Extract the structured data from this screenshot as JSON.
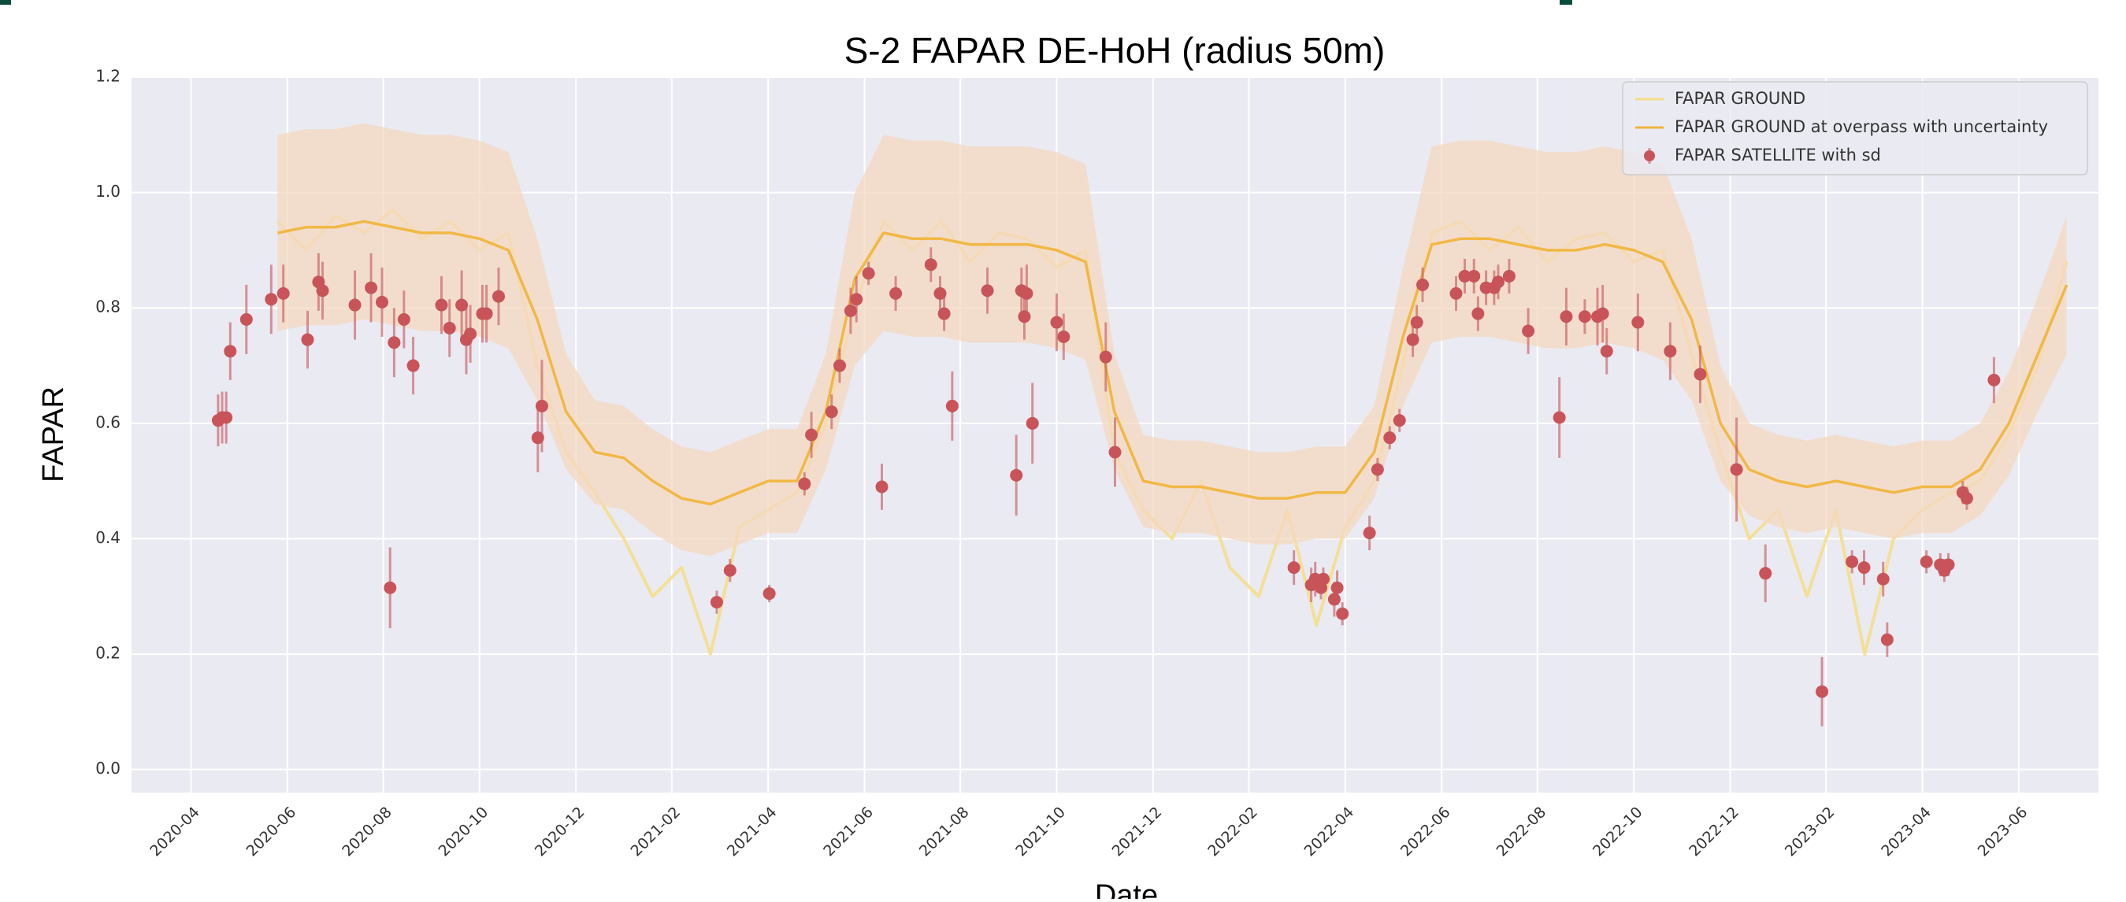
{
  "chart_data": {
    "type": "line",
    "title": "S-2 FAPAR DE-HoH (radius 50m)",
    "x_label": "Date",
    "y_label": "FAPAR",
    "xlim": [
      2020.147,
      2023.555
    ],
    "ylim": [
      -0.04,
      1.2
    ],
    "xticks": [
      {
        "value": 2020.25,
        "label": "2020-04"
      },
      {
        "value": 2020.417,
        "label": "2020-06"
      },
      {
        "value": 2020.583,
        "label": "2020-08"
      },
      {
        "value": 2020.75,
        "label": "2020-10"
      },
      {
        "value": 2020.917,
        "label": "2020-12"
      },
      {
        "value": 2021.083,
        "label": "2021-02"
      },
      {
        "value": 2021.25,
        "label": "2021-04"
      },
      {
        "value": 2021.417,
        "label": "2021-06"
      },
      {
        "value": 2021.583,
        "label": "2021-08"
      },
      {
        "value": 2021.75,
        "label": "2021-10"
      },
      {
        "value": 2021.917,
        "label": "2021-12"
      },
      {
        "value": 2022.083,
        "label": "2022-02"
      },
      {
        "value": 2022.25,
        "label": "2022-04"
      },
      {
        "value": 2022.417,
        "label": "2022-06"
      },
      {
        "value": 2022.583,
        "label": "2022-08"
      },
      {
        "value": 2022.75,
        "label": "2022-10"
      },
      {
        "value": 2022.917,
        "label": "2022-12"
      },
      {
        "value": 2023.083,
        "label": "2023-02"
      },
      {
        "value": 2023.25,
        "label": "2023-04"
      },
      {
        "value": 2023.417,
        "label": "2023-06"
      }
    ],
    "yticks": [
      {
        "value": 0,
        "label": "0.0"
      },
      0.2,
      0.4,
      0.6,
      0.8,
      {
        "value": 1,
        "label": "1.0"
      },
      1.2
    ],
    "grid": true,
    "legend": "upper right",
    "series": [
      {
        "name": "FAPAR GROUND",
        "type": "line",
        "color": "#f6dd85",
        "x": [
          2020.4,
          2020.45,
          2020.5,
          2020.55,
          2020.6,
          2020.65,
          2020.7,
          2020.75,
          2020.8,
          2020.85,
          2020.9,
          2020.95,
          2021.0,
          2021.05,
          2021.1,
          2021.15,
          2021.2,
          2021.25,
          2021.3,
          2021.35,
          2021.4,
          2021.45,
          2021.5,
          2021.55,
          2021.6,
          2021.65,
          2021.7,
          2021.75,
          2021.8,
          2021.85,
          2021.9,
          2021.95,
          2022.0,
          2022.05,
          2022.1,
          2022.15,
          2022.2,
          2022.25,
          2022.3,
          2022.35,
          2022.4,
          2022.45,
          2022.5,
          2022.55,
          2022.6,
          2022.65,
          2022.7,
          2022.75,
          2022.8,
          2022.85,
          2022.9,
          2022.95,
          2023.0,
          2023.05,
          2023.1,
          2023.15,
          2023.2,
          2023.25,
          2023.3,
          2023.35,
          2023.4,
          2023.45,
          2023.5
        ],
        "values": [
          0.95,
          0.9,
          0.96,
          0.93,
          0.97,
          0.92,
          0.95,
          0.9,
          0.93,
          0.7,
          0.55,
          0.48,
          0.4,
          0.3,
          0.35,
          0.2,
          0.42,
          0.45,
          0.48,
          0.6,
          0.8,
          0.95,
          0.9,
          0.95,
          0.88,
          0.93,
          0.92,
          0.87,
          0.9,
          0.55,
          0.45,
          0.4,
          0.5,
          0.35,
          0.3,
          0.45,
          0.25,
          0.42,
          0.5,
          0.7,
          0.93,
          0.95,
          0.9,
          0.94,
          0.88,
          0.92,
          0.93,
          0.88,
          0.9,
          0.72,
          0.55,
          0.4,
          0.45,
          0.3,
          0.45,
          0.2,
          0.4,
          0.45,
          0.48,
          0.5,
          0.58,
          0.7,
          0.88
        ]
      },
      {
        "name": "FAPAR GROUND at overpass with uncertainty",
        "type": "line",
        "color": "#f0b53c",
        "band_color": "#f4d8c0",
        "x": [
          2020.4,
          2020.45,
          2020.5,
          2020.55,
          2020.6,
          2020.65,
          2020.7,
          2020.75,
          2020.8,
          2020.85,
          2020.9,
          2020.95,
          2021.0,
          2021.05,
          2021.1,
          2021.15,
          2021.2,
          2021.25,
          2021.3,
          2021.35,
          2021.4,
          2021.45,
          2021.5,
          2021.55,
          2021.6,
          2021.65,
          2021.7,
          2021.75,
          2021.8,
          2021.85,
          2021.9,
          2021.95,
          2022.0,
          2022.05,
          2022.1,
          2022.15,
          2022.2,
          2022.25,
          2022.3,
          2022.35,
          2022.4,
          2022.45,
          2022.5,
          2022.55,
          2022.6,
          2022.65,
          2022.7,
          2022.75,
          2022.8,
          2022.85,
          2022.9,
          2022.95,
          2023.0,
          2023.05,
          2023.1,
          2023.15,
          2023.2,
          2023.25,
          2023.3,
          2023.35,
          2023.4,
          2023.45,
          2023.5
        ],
        "values": [
          0.93,
          0.94,
          0.94,
          0.95,
          0.94,
          0.93,
          0.93,
          0.92,
          0.9,
          0.78,
          0.62,
          0.55,
          0.54,
          0.5,
          0.47,
          0.46,
          0.48,
          0.5,
          0.5,
          0.62,
          0.85,
          0.93,
          0.92,
          0.92,
          0.91,
          0.91,
          0.91,
          0.9,
          0.88,
          0.62,
          0.5,
          0.49,
          0.49,
          0.48,
          0.47,
          0.47,
          0.48,
          0.48,
          0.55,
          0.75,
          0.91,
          0.92,
          0.92,
          0.91,
          0.9,
          0.9,
          0.91,
          0.9,
          0.88,
          0.78,
          0.6,
          0.52,
          0.5,
          0.49,
          0.5,
          0.49,
          0.48,
          0.49,
          0.49,
          0.52,
          0.6,
          0.72,
          0.84
        ],
        "uncertainty": [
          0.17,
          0.17,
          0.17,
          0.17,
          0.17,
          0.17,
          0.17,
          0.17,
          0.17,
          0.14,
          0.1,
          0.09,
          0.09,
          0.09,
          0.09,
          0.09,
          0.09,
          0.09,
          0.09,
          0.1,
          0.15,
          0.17,
          0.17,
          0.17,
          0.17,
          0.17,
          0.17,
          0.17,
          0.17,
          0.1,
          0.08,
          0.08,
          0.08,
          0.08,
          0.08,
          0.08,
          0.08,
          0.08,
          0.08,
          0.12,
          0.17,
          0.17,
          0.17,
          0.17,
          0.17,
          0.17,
          0.17,
          0.17,
          0.17,
          0.14,
          0.1,
          0.08,
          0.08,
          0.08,
          0.08,
          0.08,
          0.08,
          0.08,
          0.08,
          0.08,
          0.09,
          0.1,
          0.12
        ]
      },
      {
        "name": "FAPAR SATELLITE with sd",
        "type": "scatter",
        "color": "#c8545a",
        "x": [
          2020.297,
          2020.304,
          2020.311,
          2020.318,
          2020.346,
          2020.389,
          2020.41,
          2020.452,
          2020.471,
          2020.478,
          2020.534,
          2020.562,
          2020.581,
          2020.595,
          2020.602,
          2020.619,
          2020.635,
          2020.684,
          2020.698,
          2020.719,
          2020.727,
          2020.734,
          2020.755,
          2020.762,
          2020.783,
          2020.851,
          2020.858,
          2021.161,
          2021.184,
          2021.252,
          2021.313,
          2021.325,
          2021.36,
          2021.374,
          2021.393,
          2021.403,
          2021.424,
          2021.447,
          2021.471,
          2021.532,
          2021.548,
          2021.555,
          2021.569,
          2021.63,
          2021.68,
          2021.689,
          2021.694,
          2021.698,
          2021.708,
          2021.75,
          2021.762,
          2021.835,
          2021.851,
          2022.161,
          2022.191,
          2022.198,
          2022.208,
          2022.212,
          2022.231,
          2022.236,
          2022.245,
          2022.292,
          2022.306,
          2022.327,
          2022.344,
          2022.367,
          2022.374,
          2022.384,
          2022.442,
          2022.457,
          2022.473,
          2022.48,
          2022.494,
          2022.508,
          2022.515,
          2022.534,
          2022.567,
          2022.621,
          2022.633,
          2022.665,
          2022.687,
          2022.696,
          2022.703,
          2022.757,
          2022.813,
          2022.865,
          2022.928,
          2022.978,
          2023.076,
          2023.128,
          2023.149,
          2023.182,
          2023.189,
          2023.257,
          2023.281,
          2023.288,
          2023.295,
          2023.32,
          2023.327,
          2023.374
        ],
        "values": [
          0.605,
          0.61,
          0.61,
          0.725,
          0.78,
          0.815,
          0.825,
          0.745,
          0.845,
          0.83,
          0.805,
          0.835,
          0.81,
          0.315,
          0.74,
          0.78,
          0.7,
          0.805,
          0.765,
          0.805,
          0.745,
          0.755,
          0.79,
          0.79,
          0.82,
          0.575,
          0.63,
          0.29,
          0.345,
          0.305,
          0.495,
          0.58,
          0.62,
          0.7,
          0.795,
          0.815,
          0.86,
          0.49,
          0.825,
          0.875,
          0.825,
          0.79,
          0.63,
          0.83,
          0.51,
          0.83,
          0.785,
          0.825,
          0.6,
          0.775,
          0.75,
          0.715,
          0.55,
          0.35,
          0.32,
          0.33,
          0.315,
          0.33,
          0.295,
          0.315,
          0.27,
          0.41,
          0.52,
          0.575,
          0.605,
          0.745,
          0.775,
          0.84,
          0.825,
          0.855,
          0.855,
          0.79,
          0.835,
          0.835,
          0.845,
          0.855,
          0.76,
          0.61,
          0.785,
          0.785,
          0.785,
          0.79,
          0.725,
          0.775,
          0.725,
          0.685,
          0.52,
          0.34,
          0.135,
          0.36,
          0.35,
          0.33,
          0.225,
          0.36,
          0.355,
          0.345,
          0.355,
          0.48,
          0.47,
          0.675
        ],
        "sd": [
          0.045,
          0.045,
          0.045,
          0.05,
          0.06,
          0.06,
          0.05,
          0.05,
          0.05,
          0.05,
          0.06,
          0.06,
          0.06,
          0.07,
          0.06,
          0.05,
          0.05,
          0.05,
          0.05,
          0.06,
          0.06,
          0.05,
          0.05,
          0.05,
          0.05,
          0.06,
          0.08,
          0.02,
          0.02,
          0.015,
          0.02,
          0.04,
          0.03,
          0.03,
          0.04,
          0.04,
          0.02,
          0.04,
          0.03,
          0.03,
          0.03,
          0.03,
          0.06,
          0.04,
          0.07,
          0.04,
          0.04,
          0.05,
          0.07,
          0.05,
          0.04,
          0.06,
          0.06,
          0.03,
          0.03,
          0.03,
          0.02,
          0.02,
          0.03,
          0.03,
          0.02,
          0.03,
          0.02,
          0.02,
          0.02,
          0.03,
          0.03,
          0.03,
          0.03,
          0.03,
          0.03,
          0.03,
          0.03,
          0.03,
          0.03,
          0.03,
          0.04,
          0.07,
          0.05,
          0.03,
          0.05,
          0.05,
          0.04,
          0.05,
          0.05,
          0.05,
          0.09,
          0.05,
          0.06,
          0.02,
          0.03,
          0.03,
          0.03,
          0.02,
          0.02,
          0.02,
          0.02,
          0.02,
          0.02,
          0.04
        ]
      }
    ]
  }
}
